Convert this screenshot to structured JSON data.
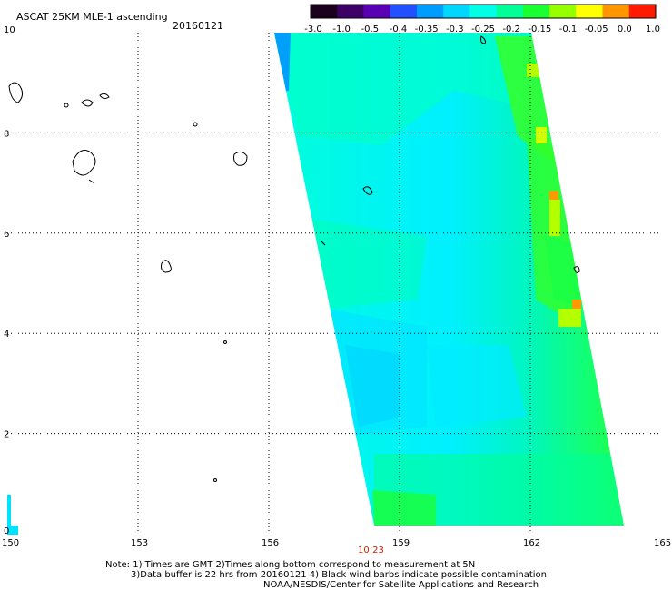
{
  "header": {
    "title": "ASCAT 25KM MLE-1 ascending",
    "date": "20160121"
  },
  "colorbar": {
    "tick_labels": [
      "-3.0",
      "-1.0",
      "-0.5",
      "-0.4",
      "-0.35",
      "-0.3",
      "-0.25",
      "-0.2",
      "-0.15",
      "-0.1",
      "-0.05",
      "0.0",
      "1.0"
    ],
    "colors": [
      "#1a001a",
      "#3d0066",
      "#5a00b4",
      "#2050ff",
      "#009cff",
      "#00d7ff",
      "#00ffe6",
      "#00ff96",
      "#1aff32",
      "#96ff00",
      "#ffff00",
      "#ff9600",
      "#ff1a00"
    ]
  },
  "map": {
    "x_ticks": [
      "150",
      "153",
      "156",
      "159",
      "162",
      "165"
    ],
    "y_ticks": [
      "0",
      "2",
      "4",
      "6",
      "8",
      "10"
    ],
    "x_range": [
      150,
      165
    ],
    "y_range": [
      0,
      10
    ],
    "gridlines": true,
    "swath_time_label": "10:23",
    "swath_time_color": "#d02000"
  },
  "footer": {
    "line1": "Note: 1) Times are GMT 2)Times along bottom correspond to measurement at 5N",
    "line2": "3)Data buffer is 22 hrs from 20160121 4) Black wind barbs indicate possible contamination",
    "line3": "NOAA/NESDIS/Center for Satellite Applications and Research"
  }
}
